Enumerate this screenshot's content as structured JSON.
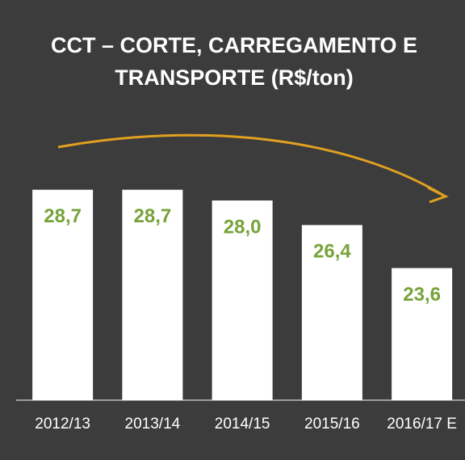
{
  "chart_data": {
    "type": "bar",
    "title": "CCT – CORTE, CARREGAMENTO E TRANSPORTE (R$/ton)",
    "categories": [
      "2012/13",
      "2013/14",
      "2014/15",
      "2015/16",
      "2016/17 E"
    ],
    "values": [
      28.7,
      28.7,
      28.0,
      26.4,
      23.6
    ],
    "value_labels": [
      "28,7",
      "28,7",
      "28,0",
      "26,4",
      "23,6"
    ],
    "color": "#ffffff",
    "label_color": "#77a33a",
    "ylim": [
      15,
      30
    ]
  }
}
